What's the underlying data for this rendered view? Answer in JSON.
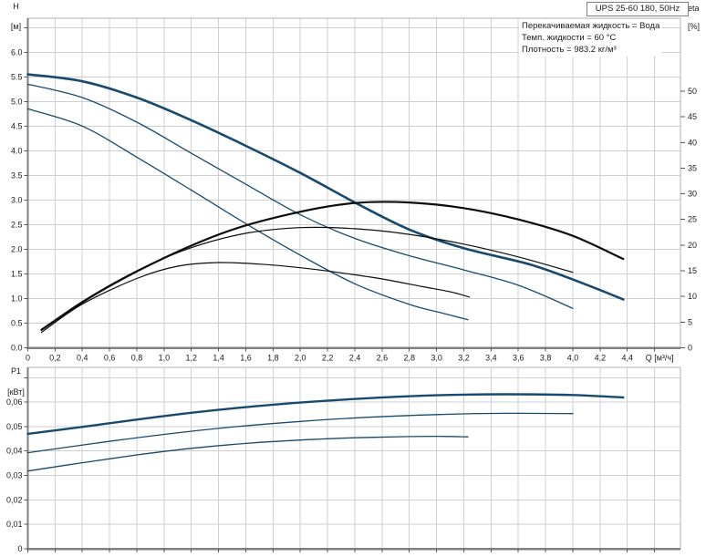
{
  "title_box": {
    "label": "UPS 25-60 180, 50Hz"
  },
  "info_lines": [
    "Перекачиваемая жидкость = Вода",
    "Темп. жидкости = 60 °C",
    "Плотность = 983.2 кг/м³"
  ],
  "colors": {
    "curve_blue": "#174a6e",
    "curve_black": "#0d0d0d",
    "grid": "#cfcfcf",
    "frame": "#b3b3b3",
    "spine": "#808080",
    "tick": "#595959",
    "text": "#1a1a1a",
    "background": "#ffffff"
  },
  "chart_data": [
    {
      "type": "line",
      "name": "head-efficiency-chart",
      "xlabel": "Q [м³/ч]",
      "x": {
        "min": 0,
        "max": 4.79,
        "grid_step": 0.2,
        "labels_visible": true,
        "tick_values": [
          0,
          0.2,
          0.4,
          0.6,
          0.8,
          1,
          1.2,
          1.4,
          1.6,
          1.8,
          2,
          2.2,
          2.4,
          2.6,
          2.8,
          3,
          3.2,
          3.4,
          3.6,
          3.8,
          4,
          4.2,
          4.4
        ],
        "tick_labels": [
          "0",
          "0,2",
          "0,4",
          "0,6",
          "0,8",
          "1,0",
          "1,2",
          "1,4",
          "1,6",
          "1,8",
          "2,0",
          "2,2",
          "2,4",
          "2,6",
          "2,8",
          "3,0",
          "3,2",
          "3,4",
          "3,6",
          "3,8",
          "4,0",
          "4,2",
          "4,4"
        ]
      },
      "y_left": {
        "label_top": "H",
        "label_unit": "[м]",
        "min": 0,
        "max": 6.69,
        "grid_step": 0.5,
        "tick_values": [
          0,
          0.5,
          1,
          1.5,
          2,
          2.5,
          3,
          3.5,
          4,
          4.5,
          5,
          5.5,
          6
        ],
        "tick_labels": [
          "0.0",
          "0.5",
          "1.0",
          "1.5",
          "2.0",
          "2.5",
          "3.0",
          "3.5",
          "4.0",
          "4.5",
          "5.0",
          "5.5",
          "6.0"
        ]
      },
      "y_right": {
        "label_top": "eta",
        "label_unit": "[%]",
        "min": 0,
        "max": 64.2,
        "tick_values": [
          0,
          5,
          10,
          15,
          20,
          25,
          30,
          35,
          40,
          45,
          50
        ],
        "tick_labels": [
          "0",
          "5",
          "10",
          "15",
          "20",
          "25",
          "30",
          "35",
          "40",
          "45",
          "50"
        ]
      },
      "series": [
        {
          "name": "H-Q curve speed 3",
          "axis": "left",
          "color": "#174a6e",
          "width": 2.6,
          "points": [
            [
              0,
              5.55
            ],
            [
              0.4,
              5.41
            ],
            [
              0.8,
              5.08
            ],
            [
              1.2,
              4.62
            ],
            [
              1.6,
              4.1
            ],
            [
              2.0,
              3.55
            ],
            [
              2.4,
              2.95
            ],
            [
              2.8,
              2.4
            ],
            [
              3.2,
              2.02
            ],
            [
              3.7,
              1.68
            ],
            [
              4.1,
              1.28
            ],
            [
              4.37,
              0.98
            ]
          ]
        },
        {
          "name": "H-Q curve speed 2",
          "axis": "left",
          "color": "#174a6e",
          "width": 1.3,
          "points": [
            [
              0,
              5.35
            ],
            [
              0.4,
              5.08
            ],
            [
              0.8,
              4.58
            ],
            [
              1.2,
              3.95
            ],
            [
              1.6,
              3.32
            ],
            [
              2.0,
              2.7
            ],
            [
              2.4,
              2.22
            ],
            [
              2.8,
              1.87
            ],
            [
              3.2,
              1.58
            ],
            [
              3.6,
              1.27
            ],
            [
              4.0,
              0.8
            ]
          ]
        },
        {
          "name": "H-Q curve speed 1",
          "axis": "left",
          "color": "#174a6e",
          "width": 1.3,
          "points": [
            [
              0,
              4.85
            ],
            [
              0.4,
              4.5
            ],
            [
              0.8,
              3.87
            ],
            [
              1.2,
              3.2
            ],
            [
              1.6,
              2.52
            ],
            [
              2.0,
              1.88
            ],
            [
              2.4,
              1.3
            ],
            [
              2.8,
              0.88
            ],
            [
              3.05,
              0.7
            ],
            [
              3.23,
              0.57
            ]
          ]
        },
        {
          "name": "eta curve speed 3",
          "axis": "right",
          "color": "#0d0d0d",
          "width": 2.2,
          "points": [
            [
              0.1,
              3.5
            ],
            [
              0.5,
              10.5
            ],
            [
              1.0,
              17.5
            ],
            [
              1.5,
              23
            ],
            [
              2.0,
              26.5
            ],
            [
              2.4,
              28.2
            ],
            [
              2.8,
              28.3
            ],
            [
              3.2,
              27.2
            ],
            [
              3.6,
              25
            ],
            [
              4.0,
              21.8
            ],
            [
              4.37,
              17.3
            ]
          ]
        },
        {
          "name": "eta curve speed 2",
          "axis": "right",
          "color": "#0d0d0d",
          "width": 1.2,
          "points": [
            [
              0.1,
              3.5
            ],
            [
              0.4,
              9
            ],
            [
              0.8,
              15
            ],
            [
              1.2,
              19.5
            ],
            [
              1.6,
              22.3
            ],
            [
              2.0,
              23.4
            ],
            [
              2.4,
              23.2
            ],
            [
              2.8,
              22.1
            ],
            [
              3.2,
              20.2
            ],
            [
              3.6,
              17.7
            ],
            [
              4.0,
              14.7
            ]
          ]
        },
        {
          "name": "eta curve speed 1",
          "axis": "right",
          "color": "#0d0d0d",
          "width": 1.2,
          "points": [
            [
              0.1,
              3
            ],
            [
              0.4,
              8.5
            ],
            [
              0.8,
              13.5
            ],
            [
              1.1,
              15.9
            ],
            [
              1.4,
              16.6
            ],
            [
              1.7,
              16.3
            ],
            [
              2.0,
              15.6
            ],
            [
              2.3,
              14.6
            ],
            [
              2.6,
              13.4
            ],
            [
              2.9,
              11.9
            ],
            [
              3.1,
              10.9
            ],
            [
              3.24,
              9.9
            ]
          ]
        }
      ]
    },
    {
      "type": "line",
      "name": "power-chart",
      "xlabel": "",
      "x": {
        "min": 0,
        "max": 4.79,
        "grid_step": 0.2,
        "labels_visible": false,
        "tick_values": [
          0,
          0.2,
          0.4,
          0.6,
          0.8,
          1,
          1.2,
          1.4,
          1.6,
          1.8,
          2,
          2.2,
          2.4,
          2.6,
          2.8,
          3,
          3.2,
          3.4,
          3.6,
          3.8,
          4,
          4.2,
          4.4
        ],
        "tick_labels": []
      },
      "y_left": {
        "label_top": "P1",
        "label_unit": "[кВт]",
        "min": 0,
        "max": 0.0742,
        "grid_step": 0.01,
        "tick_values": [
          0,
          0.01,
          0.02,
          0.03,
          0.04,
          0.05,
          0.06
        ],
        "tick_labels": [
          "0",
          "0,01",
          "0,02",
          "0,03",
          "0,04",
          "0,05",
          "0,06"
        ]
      },
      "series": [
        {
          "name": "P1 curve speed 3",
          "axis": "left",
          "color": "#174a6e",
          "width": 2.4,
          "points": [
            [
              0,
              0.047
            ],
            [
              0.5,
              0.0506
            ],
            [
              1.0,
              0.0543
            ],
            [
              1.5,
              0.0574
            ],
            [
              2.0,
              0.0598
            ],
            [
              2.5,
              0.0616
            ],
            [
              3.0,
              0.0628
            ],
            [
              3.5,
              0.0632
            ],
            [
              4.0,
              0.0629
            ],
            [
              4.37,
              0.0619
            ]
          ]
        },
        {
          "name": "P1 curve speed 2",
          "axis": "left",
          "color": "#174a6e",
          "width": 1.3,
          "points": [
            [
              0,
              0.0393
            ],
            [
              0.5,
              0.0432
            ],
            [
              1.0,
              0.0468
            ],
            [
              1.5,
              0.0498
            ],
            [
              2.0,
              0.0521
            ],
            [
              2.5,
              0.0538
            ],
            [
              3.0,
              0.0549
            ],
            [
              3.5,
              0.0554
            ],
            [
              4.0,
              0.0553
            ]
          ]
        },
        {
          "name": "P1 curve speed 1",
          "axis": "left",
          "color": "#174a6e",
          "width": 1.3,
          "points": [
            [
              0,
              0.0318
            ],
            [
              0.4,
              0.0352
            ],
            [
              0.8,
              0.0384
            ],
            [
              1.2,
              0.0411
            ],
            [
              1.6,
              0.0431
            ],
            [
              2.0,
              0.0445
            ],
            [
              2.4,
              0.0454
            ],
            [
              2.8,
              0.0459
            ],
            [
              3.0,
              0.046
            ],
            [
              3.23,
              0.0458
            ]
          ]
        }
      ]
    }
  ]
}
